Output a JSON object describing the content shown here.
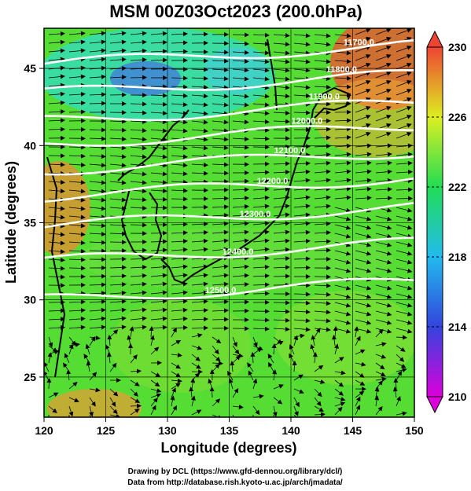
{
  "title": "MSM 00Z03Oct2023 (200.0hPa)",
  "x_axis": {
    "label": "Longitude (degrees)",
    "ticks": [
      "120",
      "125",
      "130",
      "135",
      "140",
      "145",
      "150"
    ],
    "range": [
      120,
      150
    ]
  },
  "y_axis": {
    "label": "Latitude  (degrees)",
    "ticks": [
      "25",
      "30",
      "35",
      "40",
      "45"
    ],
    "range": [
      22.4,
      47.6
    ]
  },
  "colorbar": {
    "field": "temperature",
    "range": [
      210,
      230
    ],
    "ticks": [
      "230",
      "226",
      "222",
      "218",
      "214",
      "210"
    ],
    "colors": [
      "#dd00dd",
      "#3344dd",
      "#22bbee",
      "#22dd55",
      "#ddee22",
      "#ee4433"
    ]
  },
  "contours": [
    {
      "label": "11700.0",
      "lat_at_150": 46.5
    },
    {
      "label": "11800.0",
      "lat_at_150": 44.6
    },
    {
      "label": "11900.0",
      "lat_at_150": 42.8
    },
    {
      "label": "12000.0",
      "lat_at_150": 41.3
    },
    {
      "label": "12100.0",
      "lat_at_150": 39.6
    },
    {
      "label": "12200.0",
      "lat_at_150": 37.9
    },
    {
      "label": "12300.0",
      "lat_at_150": 36.0
    },
    {
      "label": "12400.0",
      "lat_at_150": 33.7
    },
    {
      "label": "12500.0",
      "lat_at_150": 31.2
    }
  ],
  "credits": {
    "line1": "Drawing by DCL (https://www.gfd-dennou.org/library/dcl/)",
    "line2": "Data from http://database.rish.kyoto-u.ac.jp/arch/jmadata/"
  }
}
